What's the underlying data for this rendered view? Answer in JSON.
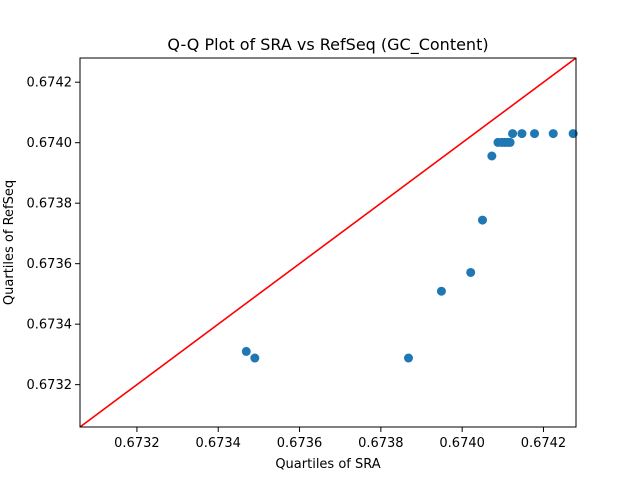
{
  "chart_data": {
    "type": "scatter",
    "title": "Q-Q Plot of SRA vs RefSeq (GC_Content)",
    "xlabel": "Quartiles of SRA",
    "ylabel": "Quartiles of RefSeq",
    "xlim": [
      0.67306,
      0.67428
    ],
    "ylim": [
      0.67306,
      0.67428
    ],
    "xticks": [
      "0.6732",
      "0.6734",
      "0.6736",
      "0.6738",
      "0.6740",
      "0.6742"
    ],
    "xtick_values": [
      0.6732,
      0.6734,
      0.6736,
      0.6738,
      0.674,
      0.6742
    ],
    "yticks": [
      "0.6732",
      "0.6734",
      "0.6736",
      "0.6738",
      "0.6740",
      "0.6742"
    ],
    "ytick_values": [
      0.6732,
      0.6734,
      0.6736,
      0.6738,
      0.674,
      0.6742
    ],
    "grid": false,
    "point_color": "#1f77b4",
    "line_color": "#ff0000",
    "reference_line": "y = x",
    "points": [
      {
        "x": 0.673469,
        "y": 0.67331
      },
      {
        "x": 0.67349,
        "y": 0.673288
      },
      {
        "x": 0.673868,
        "y": 0.673288
      },
      {
        "x": 0.673949,
        "y": 0.673509
      },
      {
        "x": 0.674021,
        "y": 0.673571
      },
      {
        "x": 0.67405,
        "y": 0.673744
      },
      {
        "x": 0.674073,
        "y": 0.673956
      },
      {
        "x": 0.674088,
        "y": 0.674001
      },
      {
        "x": 0.674097,
        "y": 0.674001
      },
      {
        "x": 0.674103,
        "y": 0.674001
      },
      {
        "x": 0.674108,
        "y": 0.674001
      },
      {
        "x": 0.674113,
        "y": 0.674001
      },
      {
        "x": 0.674118,
        "y": 0.674001
      },
      {
        "x": 0.674124,
        "y": 0.67403
      },
      {
        "x": 0.674147,
        "y": 0.67403
      },
      {
        "x": 0.674178,
        "y": 0.67403
      },
      {
        "x": 0.674224,
        "y": 0.67403
      },
      {
        "x": 0.674273,
        "y": 0.67403
      }
    ]
  }
}
